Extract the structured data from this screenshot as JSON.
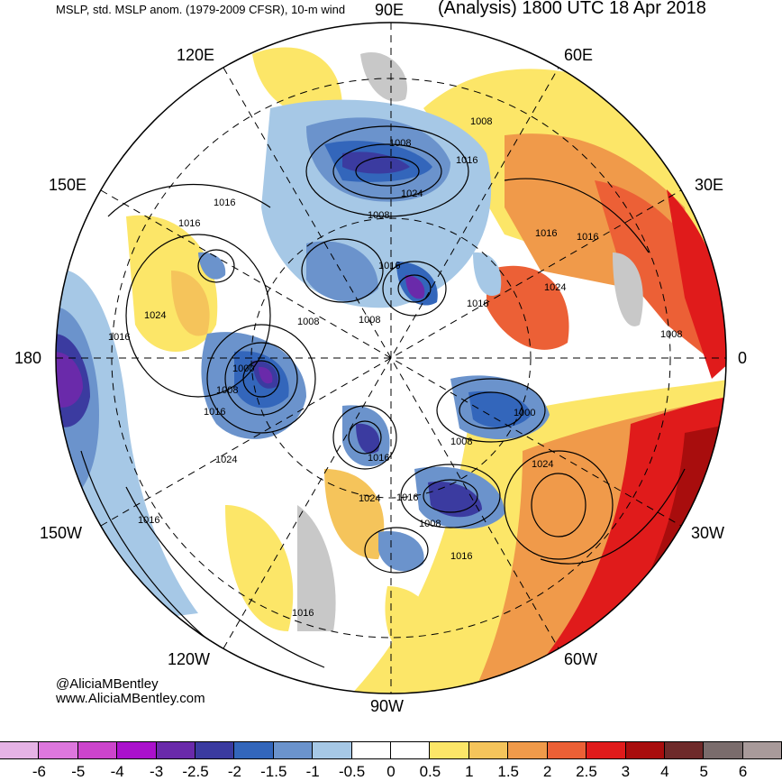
{
  "header": {
    "title_left": "MSLP, std. MSLP anom. (1979-2009 CFSR), 10-m wind",
    "title_right": "(Analysis) 1800 UTC 18 Apr 2018"
  },
  "longitude_labels": {
    "lon_90e": "90E",
    "lon_60e": "60E",
    "lon_120e": "120E",
    "lon_150e": "150E",
    "lon_30e": "30E",
    "lon_180": "180",
    "lon_0": "0",
    "lon_150w": "150W",
    "lon_30w": "30W",
    "lon_120w": "120W",
    "lon_60w": "60W",
    "lon_90w": "90W"
  },
  "isobar_labels": [
    "1008",
    "1008",
    "1016",
    "1024",
    "1008",
    "1016",
    "1016",
    "1016",
    "1024",
    "1016",
    "1016",
    "1008",
    "1008",
    "1016",
    "1024",
    "1008",
    "1000",
    "1008",
    "1016",
    "1000",
    "1008",
    "1016",
    "1024",
    "1024",
    "1016",
    "1016",
    "1008",
    "1016",
    "1016",
    "1016",
    "1024"
  ],
  "credits": {
    "handle": "@AliciaMBentley",
    "website": "www.AliciaMBentley.com"
  },
  "colorbar": {
    "colors": [
      "#e6b3e6",
      "#dd77dd",
      "#cc44cc",
      "#aa11cc",
      "#6a2aaa",
      "#3b3ba0",
      "#3366bb",
      "#6b93cc",
      "#a6c8e6",
      "#ffffff",
      "#ffffff",
      "#fce668",
      "#f5c45b",
      "#f09a4a",
      "#ec6036",
      "#e01b1b",
      "#a80d0d",
      "#6e2a2a",
      "#7a6c6c",
      "#a89a9a"
    ],
    "ticks": [
      "-6",
      "-5",
      "-4",
      "-3",
      "-2.5",
      "-2",
      "-1.5",
      "-1",
      "-0.5",
      "0",
      "0.5",
      "1",
      "1.5",
      "2",
      "2.5",
      "3",
      "4",
      "5",
      "6"
    ]
  }
}
